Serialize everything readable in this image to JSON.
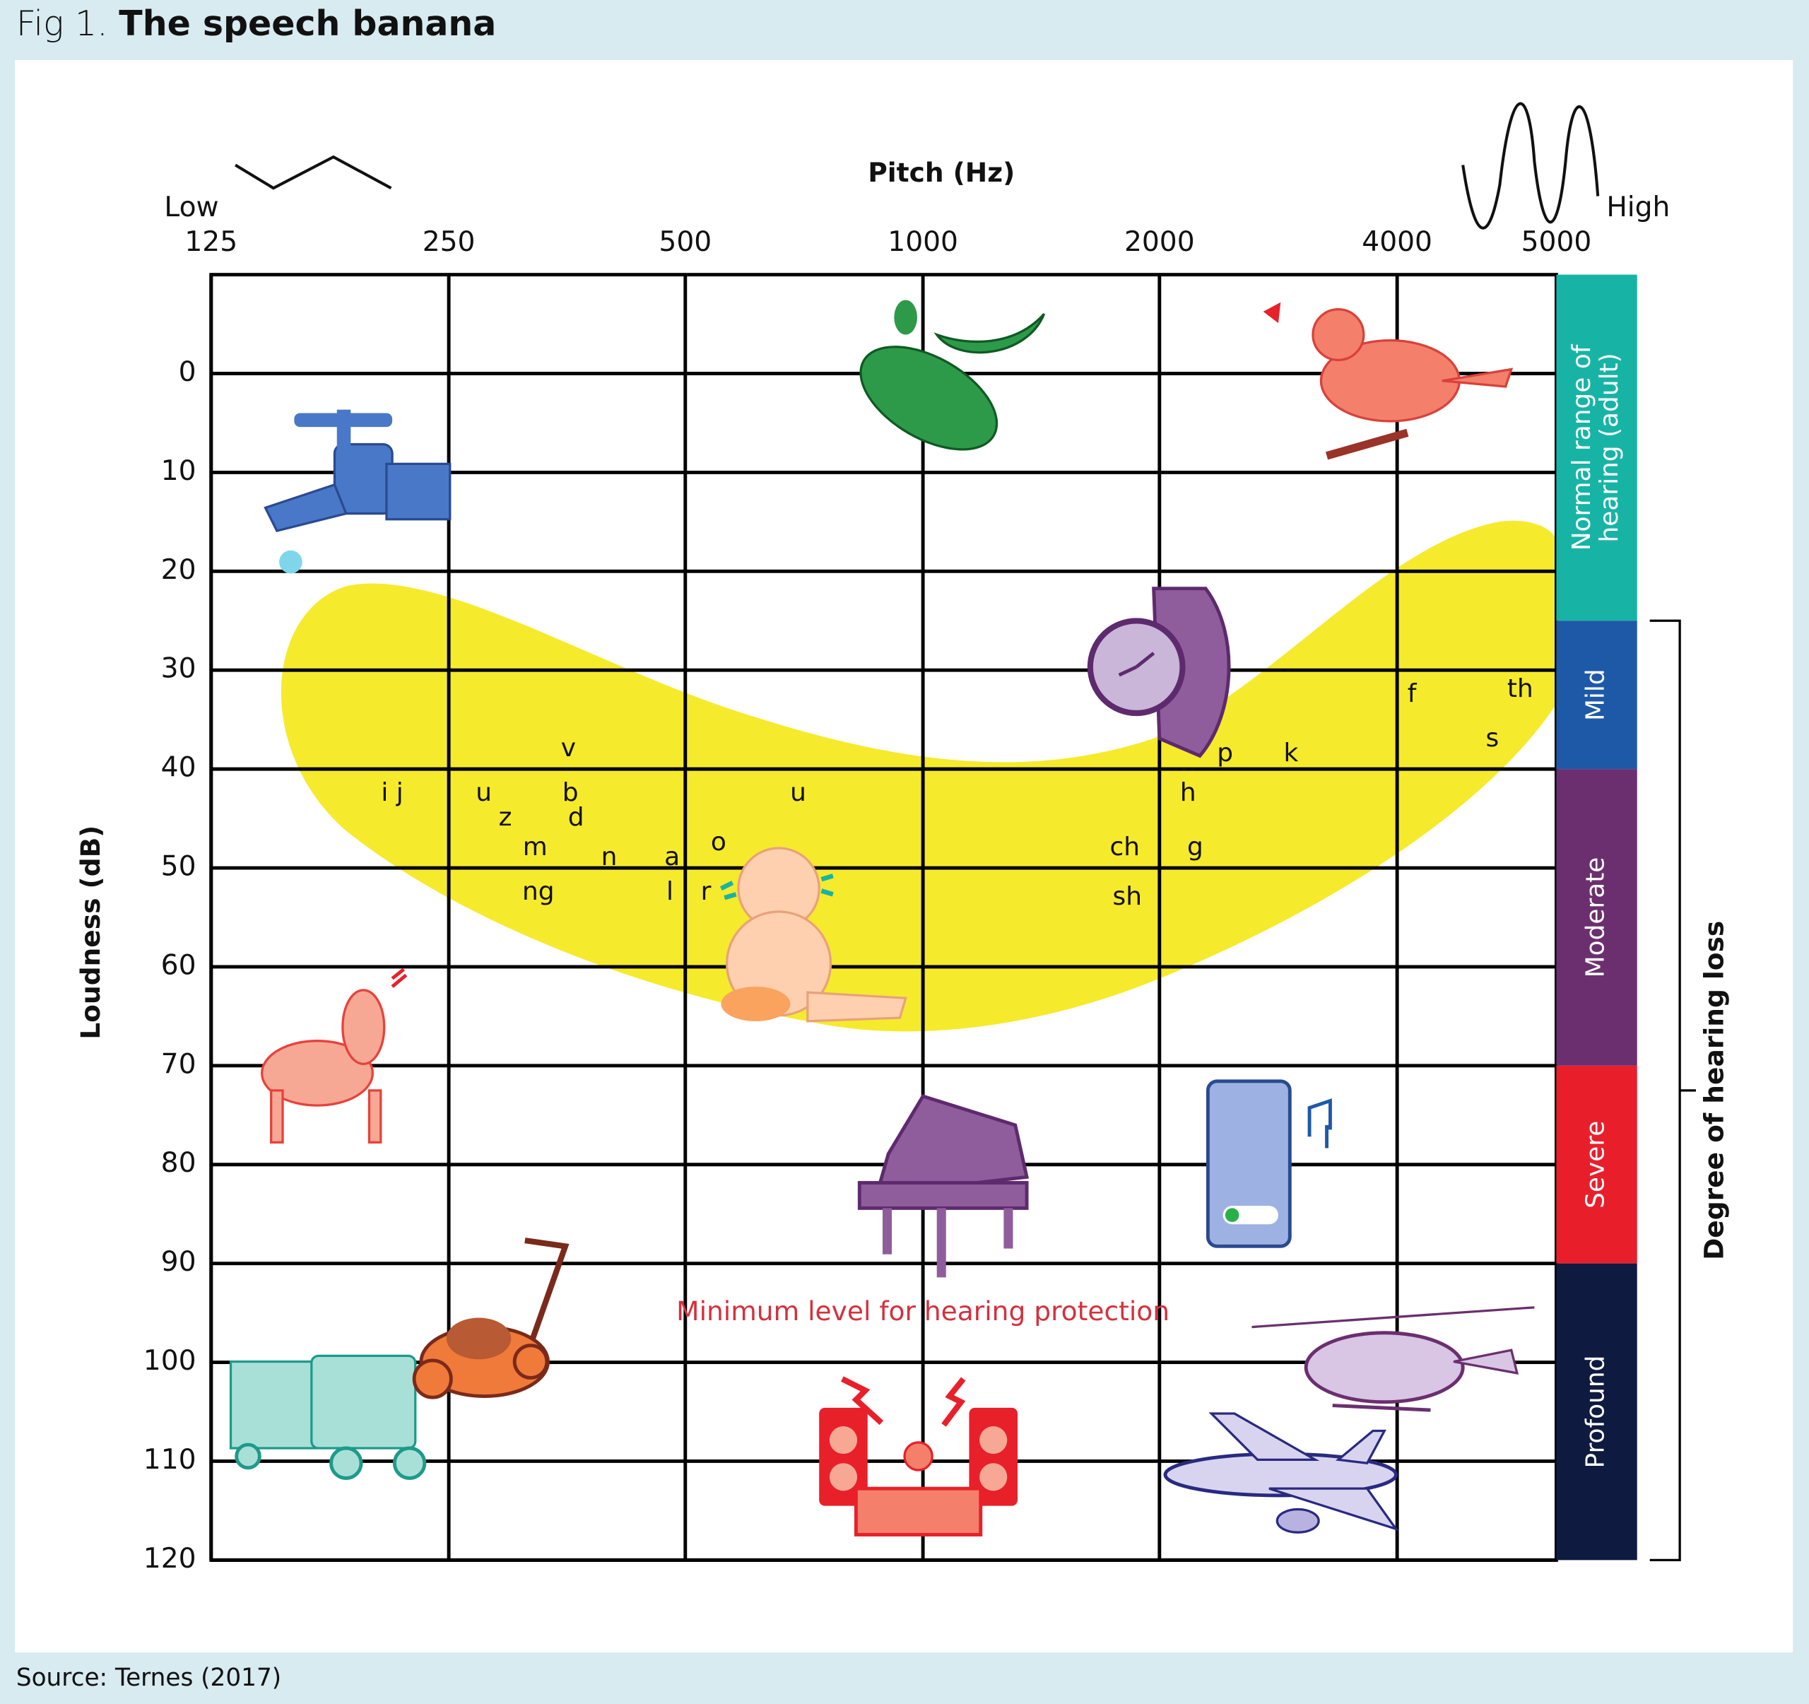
{
  "chart_data": {
    "type": "scatter",
    "figure_label": "Fig 1.",
    "title": "The speech banana",
    "x_label": "Pitch (Hz)",
    "y_label": "Loudness (dB)",
    "x_low_label": "Low",
    "x_high_label": "High",
    "xlim": [
      125,
      5000
    ],
    "xticks": [
      125,
      250,
      500,
      1000,
      2000,
      4000,
      5000
    ],
    "ylim": [
      120,
      -10
    ],
    "yticks": [
      0,
      10,
      20,
      30,
      40,
      50,
      60,
      70,
      80,
      90,
      100,
      110,
      120
    ],
    "grid": true,
    "point_labels": [
      "v",
      "i j",
      "u",
      "b",
      "z",
      "d",
      "m",
      "n",
      "a",
      "o",
      "ng",
      "l",
      "r",
      "u",
      "ch",
      "sh",
      "h",
      "g",
      "p",
      "k",
      "f",
      "th",
      "s"
    ],
    "x": [
      355,
      212,
      277,
      357,
      295,
      363,
      322,
      400,
      481,
      551,
      325,
      478,
      531,
      695,
      1807,
      1820,
      2174,
      2220,
      2422,
      2935,
      4084,
      4753,
      4571
    ],
    "values": [
      38,
      42.5,
      42.5,
      42.5,
      45,
      45,
      48,
      49,
      49,
      47.5,
      52.5,
      52.5,
      52.5,
      42.5,
      48,
      53,
      42.5,
      48,
      38.5,
      38.5,
      32.5,
      32,
      37
    ],
    "bands": [
      {
        "label": [
          "Normal range of",
          "hearing (adult)"
        ],
        "from": -10,
        "to": 25,
        "color": "#17b4a6"
      },
      {
        "label": [
          "Mild"
        ],
        "from": 25,
        "to": 40,
        "color": "#1e59a8"
      },
      {
        "label": [
          "Moderate"
        ],
        "from": 40,
        "to": 70,
        "color": "#6b2f6f"
      },
      {
        "label": [
          "Severe"
        ],
        "from": 70,
        "to": 90,
        "color": "#e81f2b"
      },
      {
        "label": [
          "Profound"
        ],
        "from": 90,
        "to": 120,
        "color": "#0f1a40"
      }
    ],
    "band_group_label": "Degree of hearing loss",
    "band_group_range": [
      25,
      120
    ],
    "annotation": {
      "text": "Minimum level for hearing protection",
      "x": 1000,
      "y": 95,
      "color": "#d3313d"
    },
    "source": "Source: Ternes (2017)"
  }
}
